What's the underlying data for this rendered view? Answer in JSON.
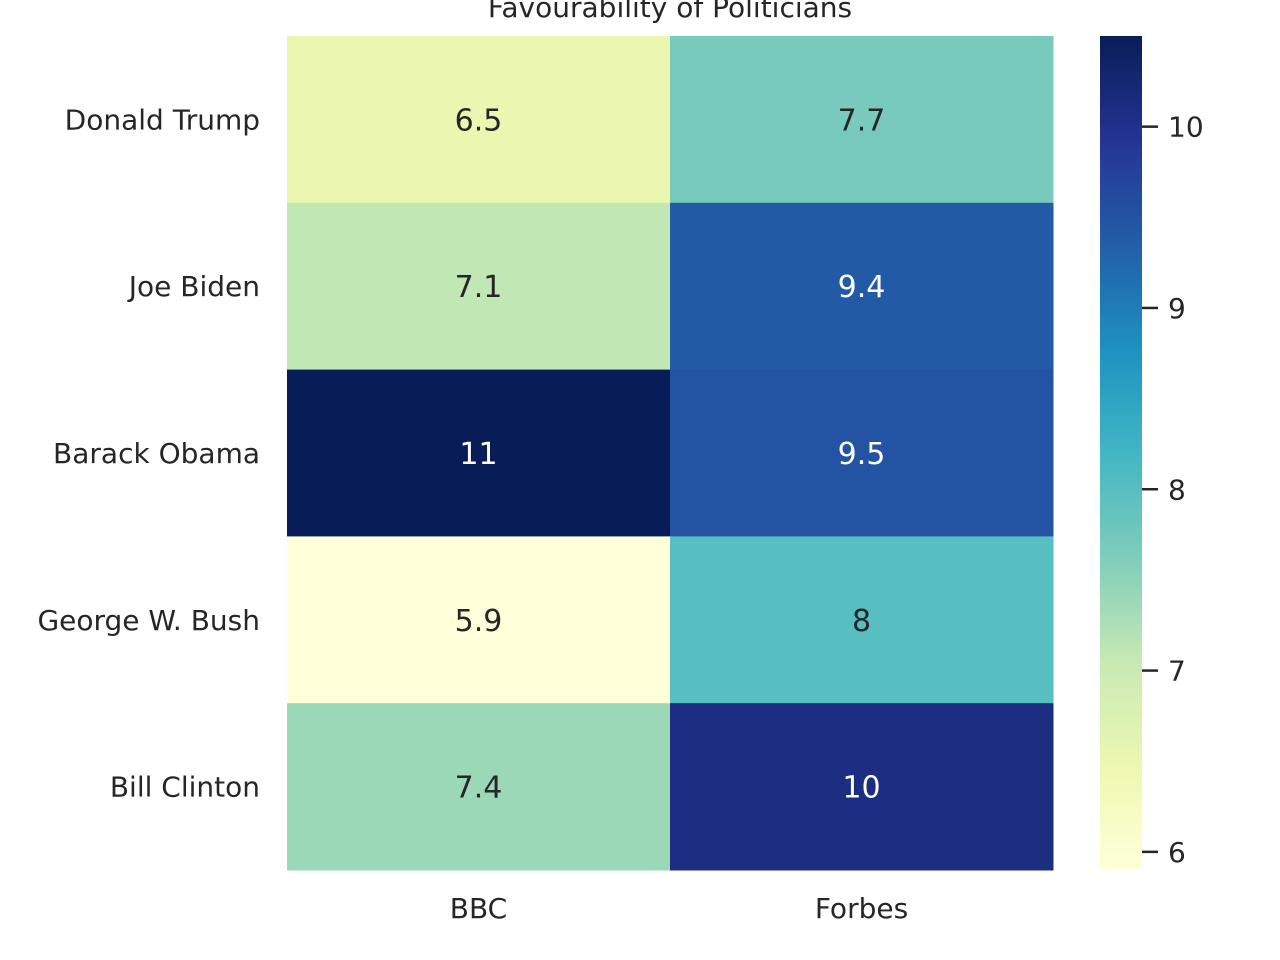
{
  "chart_data": {
    "type": "heatmap",
    "title": "Favourability of Politicians",
    "rows": [
      "Donald Trump",
      "Joe Biden",
      "Barack Obama",
      "George W. Bush",
      "Bill Clinton"
    ],
    "columns": [
      "BBC",
      "Forbes"
    ],
    "values": [
      [
        6.5,
        7.7
      ],
      [
        7.1,
        9.4
      ],
      [
        10.5,
        9.5
      ],
      [
        5.9,
        8.0
      ],
      [
        7.4,
        10.1
      ]
    ],
    "annotations": [
      [
        "6.5",
        "7.7"
      ],
      [
        "7.1",
        "9.4"
      ],
      [
        "11",
        "9.5"
      ],
      [
        "5.9",
        "8"
      ],
      [
        "7.4",
        "10"
      ]
    ],
    "colormap": "YlGnBu",
    "colorbar": {
      "range": [
        5.9,
        10.5
      ],
      "ticks": [
        6,
        7,
        8,
        9,
        10
      ]
    },
    "grid": false,
    "legend": "colorbar-right"
  }
}
